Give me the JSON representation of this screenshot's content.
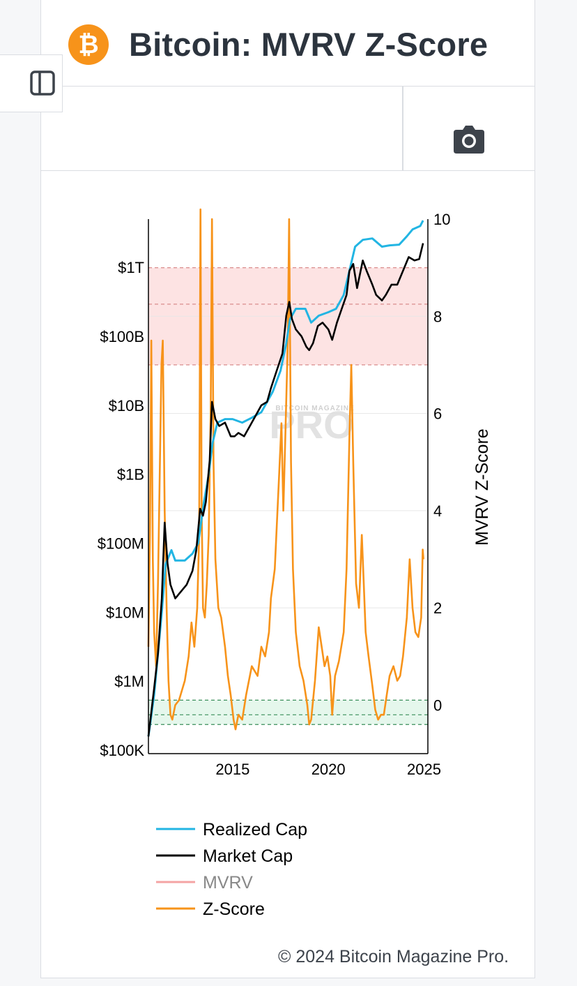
{
  "header": {
    "logo_glyph": "₿",
    "title": "Bitcoin: MVRV Z-Score"
  },
  "toolbar": {
    "camera_icon": "camera-icon",
    "sidebar_icon": "sidebar-toggle-icon"
  },
  "footer": {
    "copyright": "© 2024 Bitcoin Magazine Pro."
  },
  "colors": {
    "realized": "#22b5e3",
    "market": "#000000",
    "mvrv": "#f4a3a3",
    "zscore": "#f7931a",
    "red_band": "#fde3e3",
    "green_band": "#e5f7ec"
  },
  "chart_data": {
    "type": "line",
    "watermark": "PRO",
    "watermark_small": "BITCOIN MAGAZINE",
    "x_ticks": [
      {
        "label": "2015",
        "value": 2015
      },
      {
        "label": "2020",
        "value": 2020
      },
      {
        "label": "2025",
        "value": 2025
      }
    ],
    "x_range": [
      2010.6,
      2025.2
    ],
    "y_left": {
      "scale": "log",
      "range_log10": [
        4.95,
        12.7
      ],
      "ticks": [
        {
          "label": "$100K",
          "log10": 5
        },
        {
          "label": "$1M",
          "log10": 6
        },
        {
          "label": "$10M",
          "log10": 7
        },
        {
          "label": "$100M",
          "log10": 8
        },
        {
          "label": "$1B",
          "log10": 9
        },
        {
          "label": "$10B",
          "log10": 10
        },
        {
          "label": "$100B",
          "log10": 11
        },
        {
          "label": "$1T",
          "log10": 12
        }
      ]
    },
    "y_right": {
      "label": "MVRV Z-Score",
      "range": [
        -1,
        10
      ],
      "ticks": [
        {
          "label": "0",
          "value": 0
        },
        {
          "label": "2",
          "value": 2
        },
        {
          "label": "4",
          "value": 4
        },
        {
          "label": "6",
          "value": 6
        },
        {
          "label": "8",
          "value": 8
        },
        {
          "label": "10",
          "value": 10
        }
      ]
    },
    "bands": {
      "red": {
        "from": 7,
        "to": 9,
        "mid": 8.25
      },
      "green": {
        "from": -0.4,
        "to": 0.1,
        "mid": -0.2
      }
    },
    "legend": [
      {
        "name": "Realized Cap",
        "color_key": "realized",
        "muted": false
      },
      {
        "name": "Market Cap",
        "color_key": "market",
        "muted": false
      },
      {
        "name": "MVRV",
        "color_key": "mvrv",
        "muted": true
      },
      {
        "name": "Z-Score",
        "color_key": "zscore",
        "muted": false
      }
    ],
    "series": {
      "market_cap_log10": [
        [
          2010.6,
          5.2
        ],
        [
          2010.9,
          5.9
        ],
        [
          2011.1,
          6.4
        ],
        [
          2011.3,
          7.2
        ],
        [
          2011.45,
          8.3
        ],
        [
          2011.6,
          7.7
        ],
        [
          2011.75,
          7.4
        ],
        [
          2012.0,
          7.2
        ],
        [
          2012.3,
          7.3
        ],
        [
          2012.6,
          7.4
        ],
        [
          2012.9,
          7.6
        ],
        [
          2013.1,
          7.9
        ],
        [
          2013.3,
          8.5
        ],
        [
          2013.45,
          8.4
        ],
        [
          2013.6,
          8.6
        ],
        [
          2013.8,
          9.2
        ],
        [
          2013.92,
          10.05
        ],
        [
          2014.1,
          9.8
        ],
        [
          2014.3,
          9.7
        ],
        [
          2014.6,
          9.75
        ],
        [
          2014.9,
          9.55
        ],
        [
          2015.1,
          9.55
        ],
        [
          2015.3,
          9.6
        ],
        [
          2015.6,
          9.55
        ],
        [
          2015.9,
          9.7
        ],
        [
          2016.2,
          9.85
        ],
        [
          2016.5,
          10.0
        ],
        [
          2016.8,
          10.05
        ],
        [
          2017.0,
          10.25
        ],
        [
          2017.3,
          10.5
        ],
        [
          2017.6,
          10.75
        ],
        [
          2017.8,
          11.3
        ],
        [
          2017.96,
          11.5
        ],
        [
          2018.1,
          11.25
        ],
        [
          2018.3,
          11.1
        ],
        [
          2018.6,
          11.0
        ],
        [
          2018.85,
          10.85
        ],
        [
          2019.0,
          10.8
        ],
        [
          2019.2,
          10.9
        ],
        [
          2019.45,
          11.15
        ],
        [
          2019.7,
          11.2
        ],
        [
          2020.0,
          11.1
        ],
        [
          2020.2,
          10.95
        ],
        [
          2020.45,
          11.2
        ],
        [
          2020.7,
          11.4
        ],
        [
          2020.95,
          11.6
        ],
        [
          2021.1,
          11.95
        ],
        [
          2021.3,
          12.05
        ],
        [
          2021.5,
          11.7
        ],
        [
          2021.8,
          12.1
        ],
        [
          2022.0,
          11.95
        ],
        [
          2022.3,
          11.75
        ],
        [
          2022.5,
          11.6
        ],
        [
          2022.8,
          11.52
        ],
        [
          2023.0,
          11.6
        ],
        [
          2023.3,
          11.75
        ],
        [
          2023.6,
          11.75
        ],
        [
          2023.9,
          11.95
        ],
        [
          2024.2,
          12.15
        ],
        [
          2024.5,
          12.1
        ],
        [
          2024.75,
          12.12
        ],
        [
          2024.95,
          12.35
        ]
      ],
      "realized_cap_log10": [
        [
          2010.6,
          5.2
        ],
        [
          2010.9,
          5.8
        ],
        [
          2011.1,
          6.4
        ],
        [
          2011.3,
          7.0
        ],
        [
          2011.5,
          7.7
        ],
        [
          2011.8,
          7.9
        ],
        [
          2012.0,
          7.75
        ],
        [
          2012.5,
          7.75
        ],
        [
          2012.9,
          7.85
        ],
        [
          2013.2,
          8.0
        ],
        [
          2013.5,
          8.6
        ],
        [
          2013.75,
          9.0
        ],
        [
          2013.95,
          9.45
        ],
        [
          2014.2,
          9.75
        ],
        [
          2014.6,
          9.8
        ],
        [
          2015.0,
          9.8
        ],
        [
          2015.5,
          9.75
        ],
        [
          2016.0,
          9.82
        ],
        [
          2016.5,
          9.9
        ],
        [
          2016.8,
          10.05
        ],
        [
          2017.1,
          10.2
        ],
        [
          2017.5,
          10.5
        ],
        [
          2017.8,
          10.9
        ],
        [
          2018.0,
          11.25
        ],
        [
          2018.3,
          11.4
        ],
        [
          2018.8,
          11.4
        ],
        [
          2019.1,
          11.2
        ],
        [
          2019.5,
          11.3
        ],
        [
          2020.0,
          11.35
        ],
        [
          2020.4,
          11.4
        ],
        [
          2020.8,
          11.6
        ],
        [
          2021.1,
          11.95
        ],
        [
          2021.4,
          12.3
        ],
        [
          2021.8,
          12.4
        ],
        [
          2022.3,
          12.42
        ],
        [
          2022.8,
          12.3
        ],
        [
          2023.2,
          12.32
        ],
        [
          2023.7,
          12.33
        ],
        [
          2024.1,
          12.45
        ],
        [
          2024.4,
          12.55
        ],
        [
          2024.8,
          12.6
        ],
        [
          2024.95,
          12.68
        ]
      ],
      "zscore": [
        [
          2010.6,
          1.2
        ],
        [
          2010.68,
          3.5
        ],
        [
          2010.75,
          7.5
        ],
        [
          2010.83,
          3.0
        ],
        [
          2010.9,
          1.5
        ],
        [
          2011.0,
          0.8
        ],
        [
          2011.1,
          2.5
        ],
        [
          2011.2,
          5.0
        ],
        [
          2011.28,
          7.0
        ],
        [
          2011.35,
          7.5
        ],
        [
          2011.45,
          4.0
        ],
        [
          2011.55,
          2.0
        ],
        [
          2011.65,
          0.5
        ],
        [
          2011.75,
          -0.2
        ],
        [
          2011.85,
          -0.3
        ],
        [
          2012.0,
          0.0
        ],
        [
          2012.2,
          0.1
        ],
        [
          2012.5,
          0.5
        ],
        [
          2012.7,
          1.0
        ],
        [
          2012.85,
          1.7
        ],
        [
          2013.0,
          1.2
        ],
        [
          2013.15,
          2.0
        ],
        [
          2013.25,
          3.5
        ],
        [
          2013.32,
          10.2
        ],
        [
          2013.38,
          4.0
        ],
        [
          2013.45,
          2.0
        ],
        [
          2013.55,
          1.8
        ],
        [
          2013.65,
          2.5
        ],
        [
          2013.75,
          3.5
        ],
        [
          2013.85,
          6.0
        ],
        [
          2013.92,
          10.0
        ],
        [
          2014.0,
          5.0
        ],
        [
          2014.1,
          3.0
        ],
        [
          2014.25,
          2.0
        ],
        [
          2014.4,
          1.8
        ],
        [
          2014.6,
          1.2
        ],
        [
          2014.75,
          0.6
        ],
        [
          2014.9,
          0.2
        ],
        [
          2015.05,
          -0.3
        ],
        [
          2015.15,
          -0.5
        ],
        [
          2015.3,
          -0.2
        ],
        [
          2015.5,
          -0.3
        ],
        [
          2015.7,
          0.2
        ],
        [
          2015.85,
          0.5
        ],
        [
          2016.0,
          0.8
        ],
        [
          2016.3,
          0.6
        ],
        [
          2016.5,
          1.2
        ],
        [
          2016.7,
          1.0
        ],
        [
          2016.9,
          1.5
        ],
        [
          2017.0,
          2.2
        ],
        [
          2017.2,
          2.8
        ],
        [
          2017.4,
          4.5
        ],
        [
          2017.55,
          5.8
        ],
        [
          2017.65,
          4.0
        ],
        [
          2017.75,
          5.5
        ],
        [
          2017.88,
          7.5
        ],
        [
          2017.95,
          10.0
        ],
        [
          2018.05,
          5.0
        ],
        [
          2018.15,
          2.8
        ],
        [
          2018.3,
          1.5
        ],
        [
          2018.5,
          0.8
        ],
        [
          2018.7,
          0.5
        ],
        [
          2018.9,
          0.0
        ],
        [
          2019.0,
          -0.4
        ],
        [
          2019.1,
          -0.3
        ],
        [
          2019.3,
          0.5
        ],
        [
          2019.5,
          1.6
        ],
        [
          2019.65,
          1.2
        ],
        [
          2019.8,
          0.8
        ],
        [
          2019.95,
          1.0
        ],
        [
          2020.1,
          0.6
        ],
        [
          2020.2,
          -0.2
        ],
        [
          2020.35,
          0.6
        ],
        [
          2020.55,
          0.9
        ],
        [
          2020.8,
          1.5
        ],
        [
          2020.95,
          2.8
        ],
        [
          2021.1,
          5.5
        ],
        [
          2021.2,
          7.0
        ],
        [
          2021.3,
          5.0
        ],
        [
          2021.45,
          2.5
        ],
        [
          2021.6,
          2.0
        ],
        [
          2021.75,
          3.5
        ],
        [
          2021.85,
          2.5
        ],
        [
          2021.95,
          1.5
        ],
        [
          2022.1,
          1.0
        ],
        [
          2022.3,
          0.4
        ],
        [
          2022.45,
          -0.1
        ],
        [
          2022.6,
          -0.3
        ],
        [
          2022.75,
          -0.2
        ],
        [
          2022.9,
          -0.2
        ],
        [
          2023.05,
          0.2
        ],
        [
          2023.2,
          0.6
        ],
        [
          2023.4,
          0.8
        ],
        [
          2023.6,
          0.5
        ],
        [
          2023.75,
          0.6
        ],
        [
          2023.9,
          1.0
        ],
        [
          2024.1,
          1.8
        ],
        [
          2024.25,
          3.0
        ],
        [
          2024.4,
          2.0
        ],
        [
          2024.55,
          1.5
        ],
        [
          2024.7,
          1.4
        ],
        [
          2024.85,
          1.8
        ],
        [
          2024.93,
          3.2
        ],
        [
          2024.97,
          3.0
        ]
      ]
    }
  }
}
